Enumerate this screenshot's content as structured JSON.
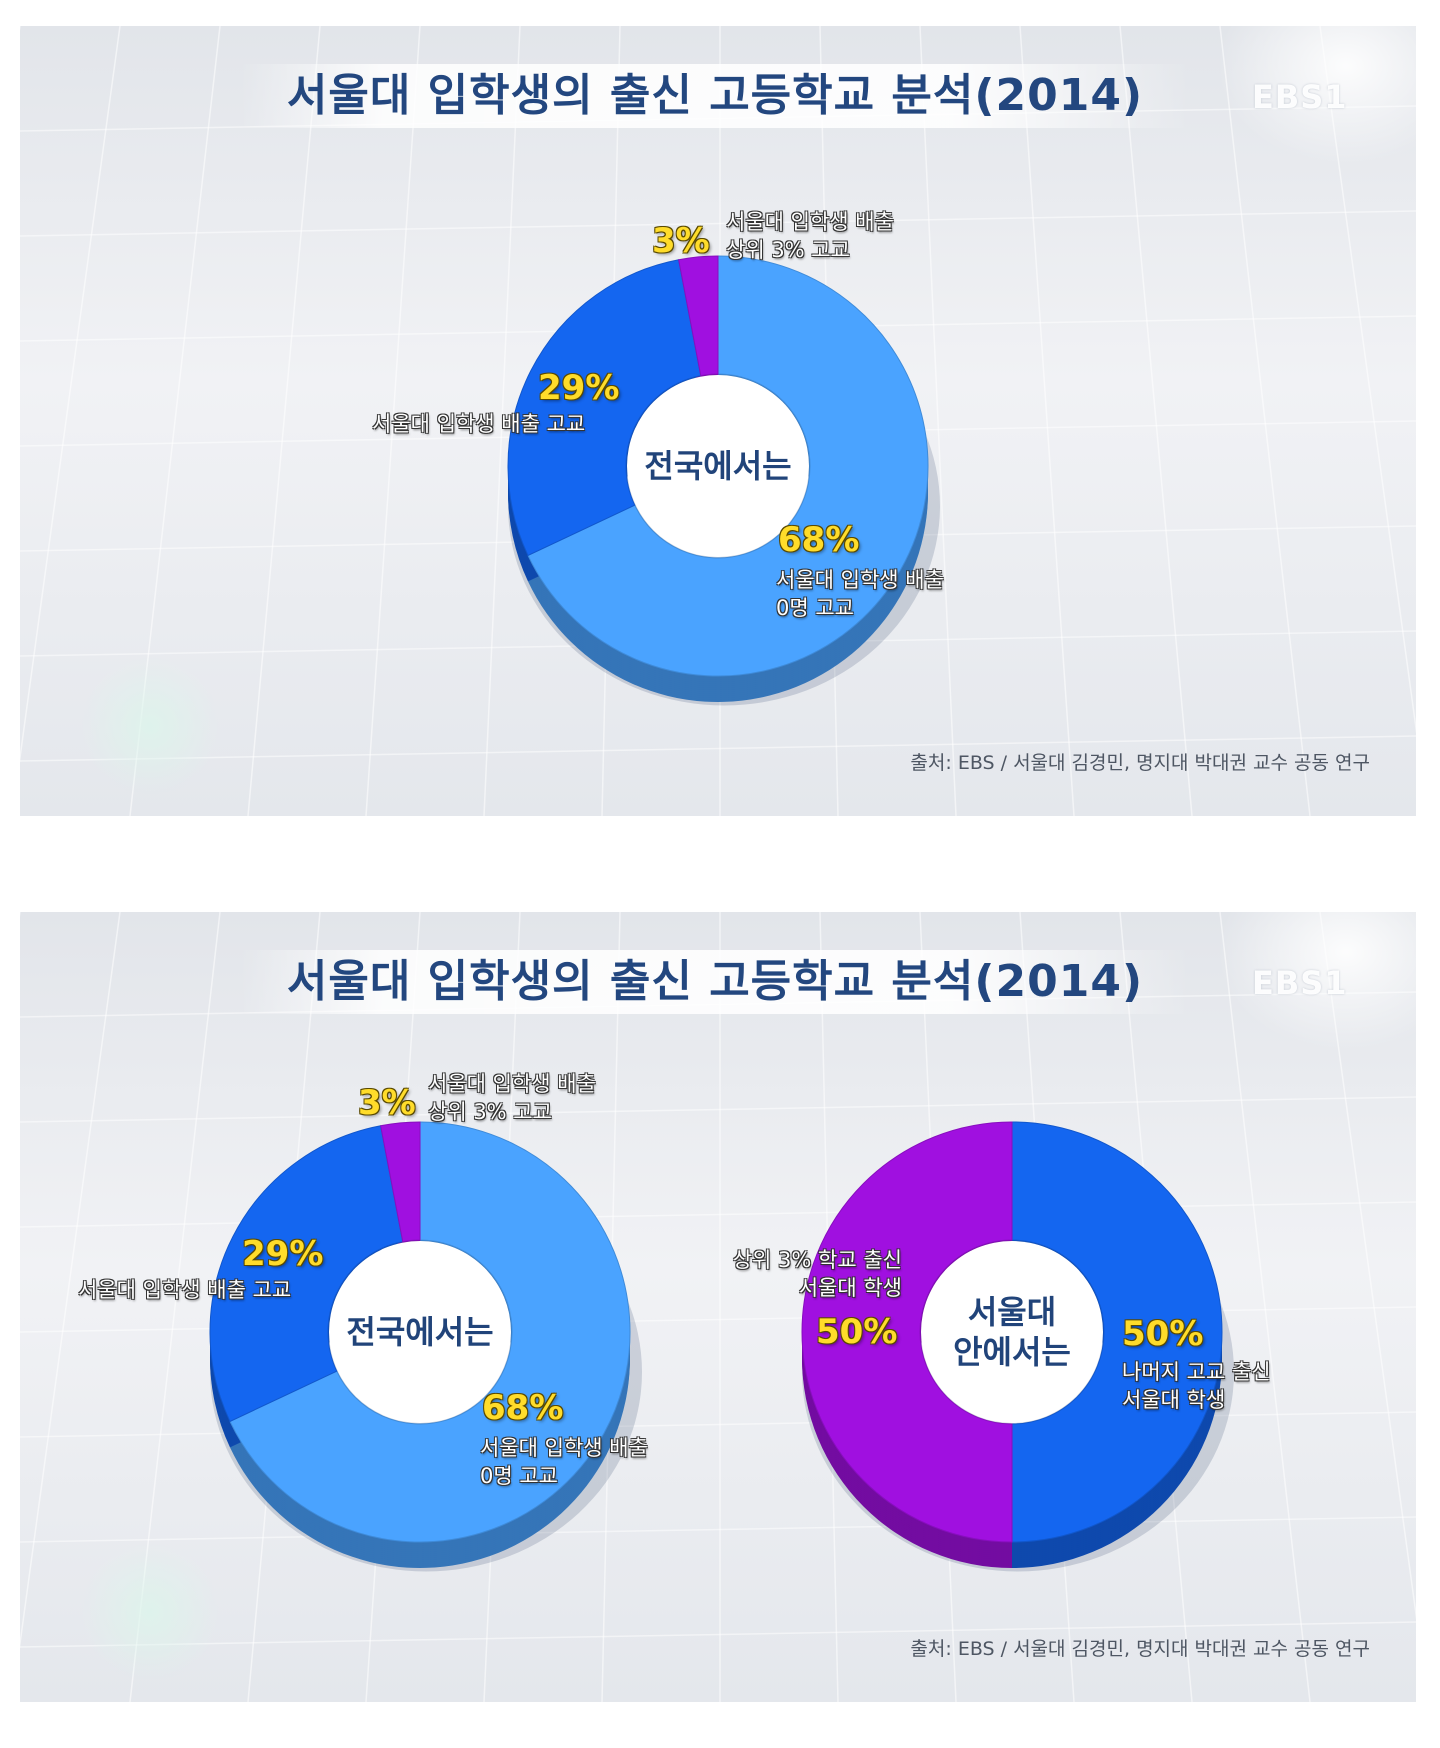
{
  "title": "서울대 입학생의 출신 고등학교 분석(2014)",
  "logo": "EBS1",
  "source": "출처: EBS / 서울대 김경민, 명지대 박대권 교수 공동 연구",
  "colors": {
    "light_blue": "#4aa3ff",
    "dark_blue": "#1466f0",
    "purple": "#a010e0",
    "title": "#23477f",
    "percent": "#ffdc2a"
  },
  "panels": [
    {
      "donuts": [
        {
          "center_label": "전국에서는",
          "slices": [
            {
              "percent_label": "68%",
              "description": "서울대 입학생 배출\n0명 고교"
            },
            {
              "percent_label": "29%",
              "description": "서울대 입학생 배출 고교"
            },
            {
              "percent_label": "3%",
              "description": "서울대 입학생 배출\n상위 3% 고교"
            }
          ]
        }
      ]
    },
    {
      "donuts": [
        {
          "center_label": "전국에서는",
          "slices": [
            {
              "percent_label": "68%",
              "description": "서울대 입학생 배출\n0명 고교"
            },
            {
              "percent_label": "29%",
              "description": "서울대 입학생 배출 고교"
            },
            {
              "percent_label": "3%",
              "description": "서울대 입학생 배출\n상위 3% 고교"
            }
          ]
        },
        {
          "center_label": "서울대\n안에서는",
          "slices": [
            {
              "percent_label": "50%",
              "description": "나머지 고교 출신\n서울대 학생"
            },
            {
              "percent_label": "50%",
              "description": "상위 3% 학교 출신\n서울대 학생"
            }
          ]
        }
      ]
    }
  ],
  "chart_data": [
    {
      "type": "pie",
      "title": "전국에서는",
      "categories": [
        "서울대 입학생 배출 0명 고교",
        "서울대 입학생 배출 고교",
        "서울대 입학생 배출 상위 3% 고교"
      ],
      "values": [
        68,
        29,
        3
      ],
      "colors": [
        "#4aa3ff",
        "#1466f0",
        "#a010e0"
      ],
      "donut": true
    },
    {
      "type": "pie",
      "title": "전국에서는",
      "categories": [
        "서울대 입학생 배출 0명 고교",
        "서울대 입학생 배출 고교",
        "서울대 입학생 배출 상위 3% 고교"
      ],
      "values": [
        68,
        29,
        3
      ],
      "colors": [
        "#4aa3ff",
        "#1466f0",
        "#a010e0"
      ],
      "donut": true
    },
    {
      "type": "pie",
      "title": "서울대 안에서는",
      "categories": [
        "나머지 고교 출신 서울대 학생",
        "상위 3% 학교 출신 서울대 학생"
      ],
      "values": [
        50,
        50
      ],
      "colors": [
        "#1466f0",
        "#a010e0"
      ],
      "donut": true
    }
  ]
}
